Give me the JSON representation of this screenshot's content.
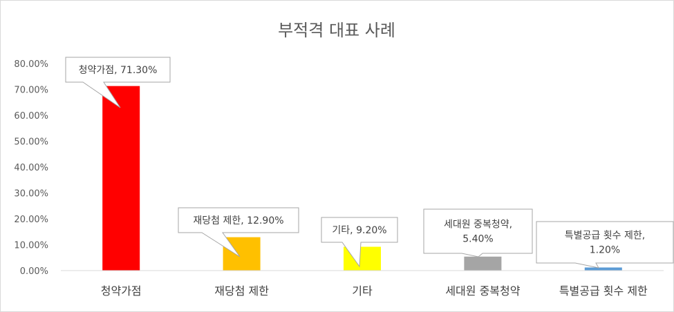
{
  "chart_data": {
    "type": "bar",
    "title": "부적격 대표 사례",
    "categories": [
      "청약가점",
      "재당첨 제한",
      "기타",
      "세대원 중복청약",
      "특별공급 횟수 제한"
    ],
    "values": [
      71.3,
      12.9,
      9.2,
      5.4,
      1.2
    ],
    "colors": [
      "#ff0000",
      "#ffc000",
      "#ffff00",
      "#a5a5a5",
      "#5b9bd5"
    ],
    "data_labels": [
      [
        "청약가점, 71.30%"
      ],
      [
        "재당첨 제한, 12.90%"
      ],
      [
        "기타, 9.20%"
      ],
      [
        "세대원 중복청약,",
        "5.40%"
      ],
      [
        "특별공급 횟수 제한,",
        "1.20%"
      ]
    ],
    "ylim": [
      0,
      80
    ],
    "ytick_step": 10,
    "ytick_labels": [
      "0.00%",
      "10.00%",
      "20.00%",
      "30.00%",
      "40.00%",
      "50.00%",
      "60.00%",
      "70.00%",
      "80.00%"
    ],
    "grid": false,
    "legend": "none",
    "xlabel": "",
    "ylabel": ""
  }
}
